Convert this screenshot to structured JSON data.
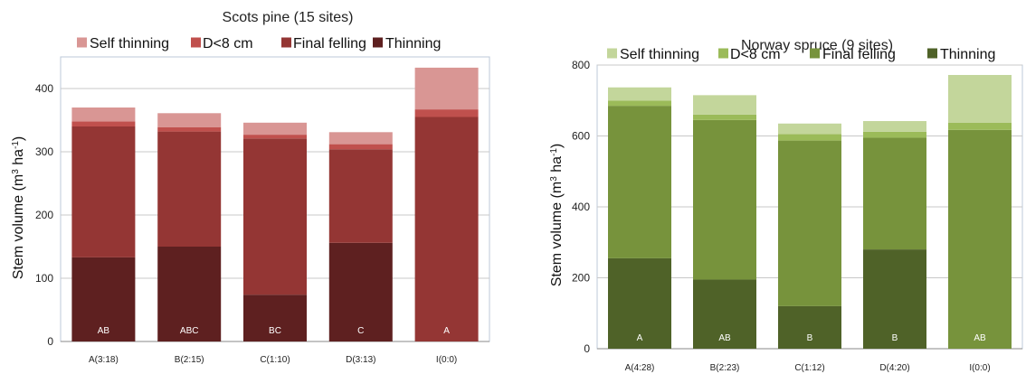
{
  "chart_data": [
    {
      "type": "bar",
      "stacked": true,
      "title": "Scots pine (15 sites)",
      "xlabel": "",
      "ylabel": "Stem volume (m³ ha⁻¹)",
      "ylabel_parts": {
        "a": "Stem volume (m",
        "sup1": "3",
        "b": " ha",
        "sup2": "-1",
        "c": ")"
      },
      "ylim": [
        0,
        450
      ],
      "yticks": [
        0,
        100,
        200,
        300,
        400
      ],
      "grid": true,
      "legend_position": "top",
      "categories": [
        "A(3:18)",
        "B(2:15)",
        "C(1:10)",
        "D(3:13)",
        "I(0:0)"
      ],
      "bar_labels": [
        "AB",
        "ABC",
        "BC",
        "C",
        "A"
      ],
      "series": [
        {
          "name": "Thinning",
          "color": "#5e2020",
          "values": [
            133,
            150,
            74,
            156,
            0
          ]
        },
        {
          "name": "Final felling",
          "color": "#943634",
          "values": [
            207,
            182,
            247,
            148,
            355
          ]
        },
        {
          "name": "D<8 cm",
          "color": "#c0504d",
          "values": [
            8,
            7,
            6,
            8,
            12
          ]
        },
        {
          "name": "Self thinning",
          "color": "#d99694",
          "values": [
            22,
            22,
            19,
            19,
            66
          ]
        }
      ],
      "legend_order": [
        "Self thinning",
        "D<8 cm",
        "Final felling",
        "Thinning"
      ]
    },
    {
      "type": "bar",
      "stacked": true,
      "title": "Norway spruce (9 sites)",
      "xlabel": "",
      "ylabel": "Stem volume (m³ ha⁻¹)",
      "ylabel_parts": {
        "a": "Stem volume (m",
        "sup1": "3",
        "b": " ha",
        "sup2": "-1",
        "c": ")"
      },
      "ylim": [
        0,
        800
      ],
      "yticks": [
        0,
        200,
        400,
        600,
        800
      ],
      "grid": true,
      "legend_position": "top",
      "categories": [
        "A(4:28)",
        "B(2:23)",
        "C(1:12)",
        "D(4:20)",
        "I(0:0)"
      ],
      "bar_labels": [
        "A",
        "AB",
        "B",
        "B",
        "AB"
      ],
      "series": [
        {
          "name": "Thinning",
          "color": "#4f6228",
          "values": [
            255,
            195,
            120,
            280,
            0
          ]
        },
        {
          "name": "Final felling",
          "color": "#77933c",
          "values": [
            430,
            450,
            467,
            315,
            617
          ]
        },
        {
          "name": "D<8 cm",
          "color": "#9bbb59",
          "values": [
            15,
            15,
            18,
            17,
            20
          ]
        },
        {
          "name": "Self thinning",
          "color": "#c3d69b",
          "values": [
            37,
            55,
            30,
            30,
            135
          ]
        }
      ],
      "legend_order": [
        "Self thinning",
        "D<8 cm",
        "Final felling",
        "Thinning"
      ]
    }
  ]
}
